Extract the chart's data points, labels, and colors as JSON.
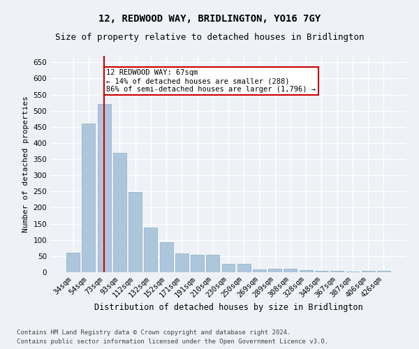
{
  "title": "12, REDWOOD WAY, BRIDLINGTON, YO16 7GY",
  "subtitle": "Size of property relative to detached houses in Bridlington",
  "xlabel": "Distribution of detached houses by size in Bridlington",
  "ylabel": "Number of detached properties",
  "categories": [
    "34sqm",
    "54sqm",
    "73sqm",
    "93sqm",
    "112sqm",
    "132sqm",
    "152sqm",
    "171sqm",
    "191sqm",
    "210sqm",
    "230sqm",
    "250sqm",
    "269sqm",
    "289sqm",
    "308sqm",
    "328sqm",
    "348sqm",
    "367sqm",
    "387sqm",
    "406sqm",
    "426sqm"
  ],
  "values": [
    60,
    460,
    520,
    370,
    248,
    138,
    93,
    58,
    55,
    53,
    25,
    25,
    8,
    10,
    10,
    6,
    4,
    4,
    2,
    5,
    5
  ],
  "bar_color": "#aec6dc",
  "bar_edge_color": "#8aaec8",
  "red_line_index": 2,
  "ylim": [
    0,
    670
  ],
  "yticks": [
    0,
    50,
    100,
    150,
    200,
    250,
    300,
    350,
    400,
    450,
    500,
    550,
    600,
    650
  ],
  "annotation_text": "12 REDWOOD WAY: 67sqm\n← 14% of detached houses are smaller (288)\n86% of semi-detached houses are larger (1,796) →",
  "annotation_box_color": "#ffffff",
  "annotation_box_edge_color": "#cc0000",
  "footer1": "Contains HM Land Registry data © Crown copyright and database right 2024.",
  "footer2": "Contains public sector information licensed under the Open Government Licence v3.0.",
  "bg_color": "#eef2f6",
  "grid_color": "#ffffff",
  "title_fontsize": 10,
  "subtitle_fontsize": 9,
  "xlabel_fontsize": 8.5,
  "ylabel_fontsize": 8,
  "tick_fontsize": 7.5,
  "footer_fontsize": 6.5,
  "ann_fontsize": 7.5
}
